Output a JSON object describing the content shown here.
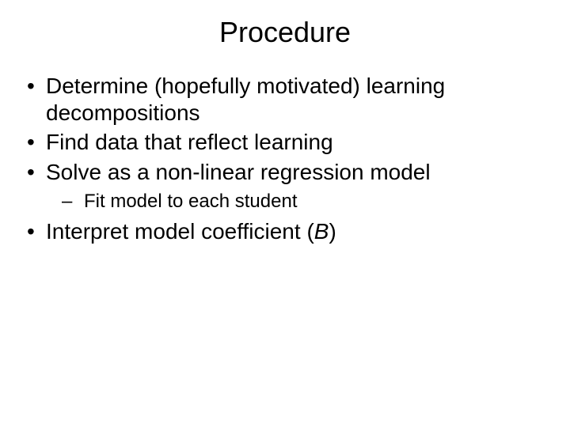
{
  "title": "Procedure",
  "bullets": {
    "b1": "Determine (hopefully motivated) learning decompositions",
    "b2": "Find data that reflect learning",
    "b3": "Solve as a non-linear regression model",
    "b3_sub1": "Fit model to each student",
    "b4_pre": "Interpret model coefficient (",
    "b4_italic": "B",
    "b4_post": ")"
  },
  "style": {
    "background_color": "#ffffff",
    "text_color": "#000000",
    "title_fontsize": 36,
    "body_fontsize": 28,
    "sub_fontsize": 24,
    "font_family": "Arial"
  }
}
